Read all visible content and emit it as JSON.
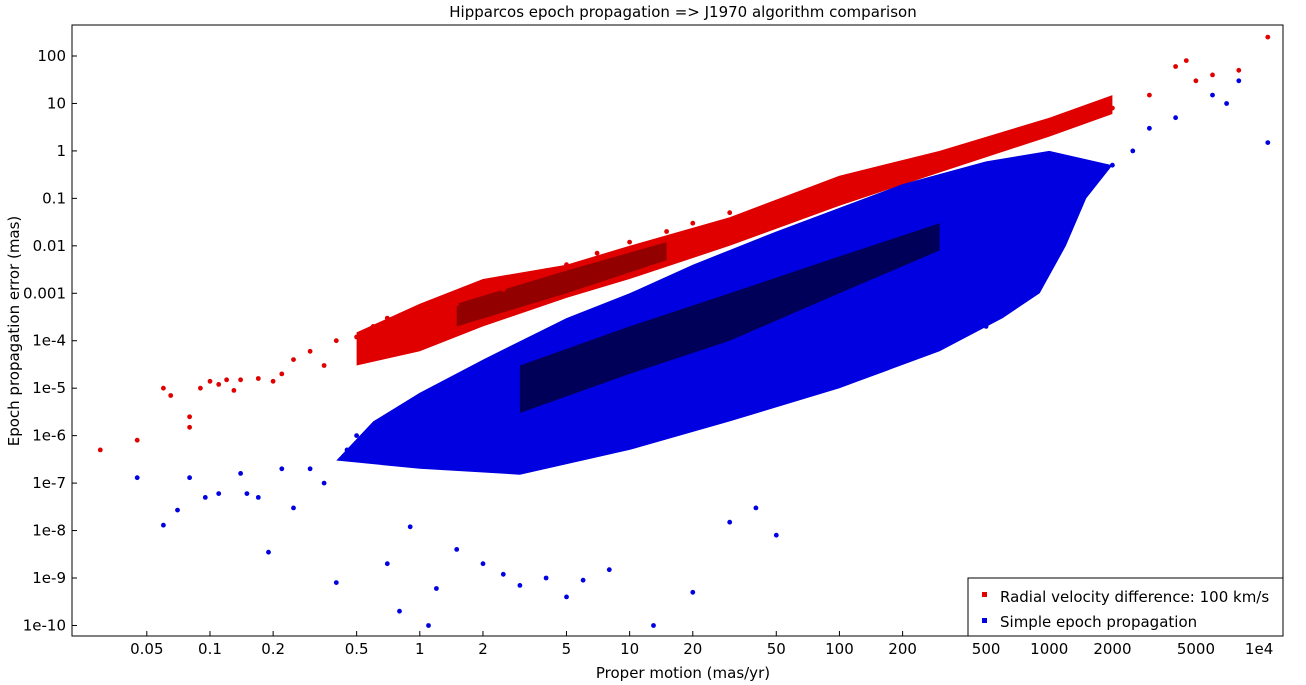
{
  "chart_data": {
    "type": "scatter",
    "title": "Hipparcos epoch propagation => J1970 algorithm comparison",
    "xlabel": "Proper motion (mas/yr)",
    "ylabel": "Epoch propagation error (mas)",
    "xscale": "log",
    "yscale": "log",
    "xlim": [
      0.022,
      13000
    ],
    "ylim": [
      6e-11,
      450
    ],
    "x_ticks": [
      0.05,
      0.1,
      0.2,
      0.5,
      1,
      2,
      5,
      10,
      20,
      50,
      100,
      200,
      500,
      1000,
      2000,
      5000,
      10000
    ],
    "x_tick_labels": [
      "0.05",
      "0.1",
      "0.2",
      "0.5",
      "1",
      "2",
      "5",
      "10",
      "20",
      "50",
      "100",
      "200",
      "500",
      "1000",
      "2000",
      "5000",
      "1e4"
    ],
    "y_ticks": [
      1e-10,
      1e-09,
      1e-08,
      1e-07,
      1e-06,
      1e-05,
      0.0001,
      0.001,
      0.01,
      0.1,
      1,
      10,
      100
    ],
    "y_tick_labels": [
      "1e-10",
      "1e-9",
      "1e-8",
      "1e-7",
      "1e-6",
      "1e-5",
      "1e-4",
      "0.001",
      "0.01",
      "0.1",
      "1",
      "10",
      "100"
    ],
    "grid": false,
    "legend_position": "bottom-right",
    "series": [
      {
        "name": "Radial velocity difference: 100 km/s",
        "color": "#e00000",
        "points": [
          [
            0.03,
            5e-07
          ],
          [
            0.045,
            8e-07
          ],
          [
            0.06,
            1e-05
          ],
          [
            0.065,
            7e-06
          ],
          [
            0.08,
            2.5e-06
          ],
          [
            0.08,
            1.5e-06
          ],
          [
            0.09,
            1e-05
          ],
          [
            0.1,
            1.4e-05
          ],
          [
            0.11,
            1.2e-05
          ],
          [
            0.12,
            1.5e-05
          ],
          [
            0.13,
            9e-06
          ],
          [
            0.14,
            1.5e-05
          ],
          [
            0.17,
            1.6e-05
          ],
          [
            0.2,
            1.4e-05
          ],
          [
            0.22,
            2e-05
          ],
          [
            0.25,
            4e-05
          ],
          [
            0.3,
            6e-05
          ],
          [
            0.35,
            3e-05
          ],
          [
            0.4,
            0.0001
          ],
          [
            0.5,
            0.00012
          ],
          [
            0.6,
            0.0002
          ],
          [
            0.7,
            0.0003
          ],
          [
            0.8,
            0.00015
          ],
          [
            0.9,
            0.00025
          ],
          [
            1,
            0.0003
          ],
          [
            1.2,
            0.0004
          ],
          [
            1.5,
            0.0006
          ],
          [
            2,
            0.001
          ],
          [
            2.5,
            0.0012
          ],
          [
            3,
            0.002
          ],
          [
            4,
            0.003
          ],
          [
            5,
            0.004
          ],
          [
            7,
            0.007
          ],
          [
            10,
            0.012
          ],
          [
            15,
            0.02
          ],
          [
            20,
            0.03
          ],
          [
            30,
            0.05
          ],
          [
            50,
            0.08
          ],
          [
            70,
            0.12
          ],
          [
            100,
            0.2
          ],
          [
            150,
            0.3
          ],
          [
            200,
            0.45
          ],
          [
            300,
            0.7
          ],
          [
            500,
            1.2
          ],
          [
            700,
            2
          ],
          [
            1000,
            3
          ],
          [
            1500,
            5
          ],
          [
            2000,
            8
          ],
          [
            3000,
            15
          ],
          [
            4000,
            60
          ],
          [
            4500,
            80
          ],
          [
            5000,
            30
          ],
          [
            6000,
            40
          ],
          [
            8000,
            50
          ],
          [
            11000,
            250
          ]
        ]
      },
      {
        "name": "Simple epoch propagation",
        "color": "#0000e0",
        "points": [
          [
            0.045,
            1.3e-07
          ],
          [
            0.06,
            1.3e-08
          ],
          [
            0.07,
            2.7e-08
          ],
          [
            0.08,
            1.3e-07
          ],
          [
            0.095,
            5e-08
          ],
          [
            0.11,
            6e-08
          ],
          [
            0.14,
            1.6e-07
          ],
          [
            0.15,
            6e-08
          ],
          [
            0.17,
            5e-08
          ],
          [
            0.19,
            3.5e-09
          ],
          [
            0.22,
            2e-07
          ],
          [
            0.25,
            3e-08
          ],
          [
            0.3,
            2e-07
          ],
          [
            0.35,
            1e-07
          ],
          [
            0.4,
            8e-10
          ],
          [
            0.45,
            5e-07
          ],
          [
            0.5,
            1e-06
          ],
          [
            0.7,
            2e-09
          ],
          [
            0.8,
            2e-10
          ],
          [
            0.9,
            1.2e-08
          ],
          [
            1.1,
            1e-10
          ],
          [
            1.2,
            6e-10
          ],
          [
            1.5,
            4e-09
          ],
          [
            2,
            2e-09
          ],
          [
            2.5,
            1.2e-09
          ],
          [
            3,
            7e-10
          ],
          [
            4,
            1e-09
          ],
          [
            5,
            4e-10
          ],
          [
            6,
            9e-10
          ],
          [
            8,
            1.5e-09
          ],
          [
            13,
            1e-10
          ],
          [
            20,
            5e-10
          ],
          [
            30,
            1.5e-08
          ],
          [
            40,
            3e-08
          ],
          [
            50,
            8e-09
          ],
          [
            5,
            3e-06
          ],
          [
            10,
            1e-05
          ],
          [
            20,
            3e-05
          ],
          [
            50,
            0.0001
          ],
          [
            100,
            0.0003
          ],
          [
            200,
            0.001
          ],
          [
            300,
            0.003
          ],
          [
            500,
            0.01
          ],
          [
            700,
            0.03
          ],
          [
            1000,
            0.1
          ],
          [
            1500,
            0.3
          ],
          [
            2000,
            0.5
          ],
          [
            2500,
            1
          ],
          [
            3000,
            3
          ],
          [
            4000,
            5
          ],
          [
            6000,
            15
          ],
          [
            8000,
            30
          ],
          [
            11000,
            1.5
          ],
          [
            7000,
            10
          ],
          [
            900,
            0.002
          ],
          [
            700,
            0.001
          ],
          [
            500,
            0.0002
          ]
        ]
      }
    ]
  }
}
